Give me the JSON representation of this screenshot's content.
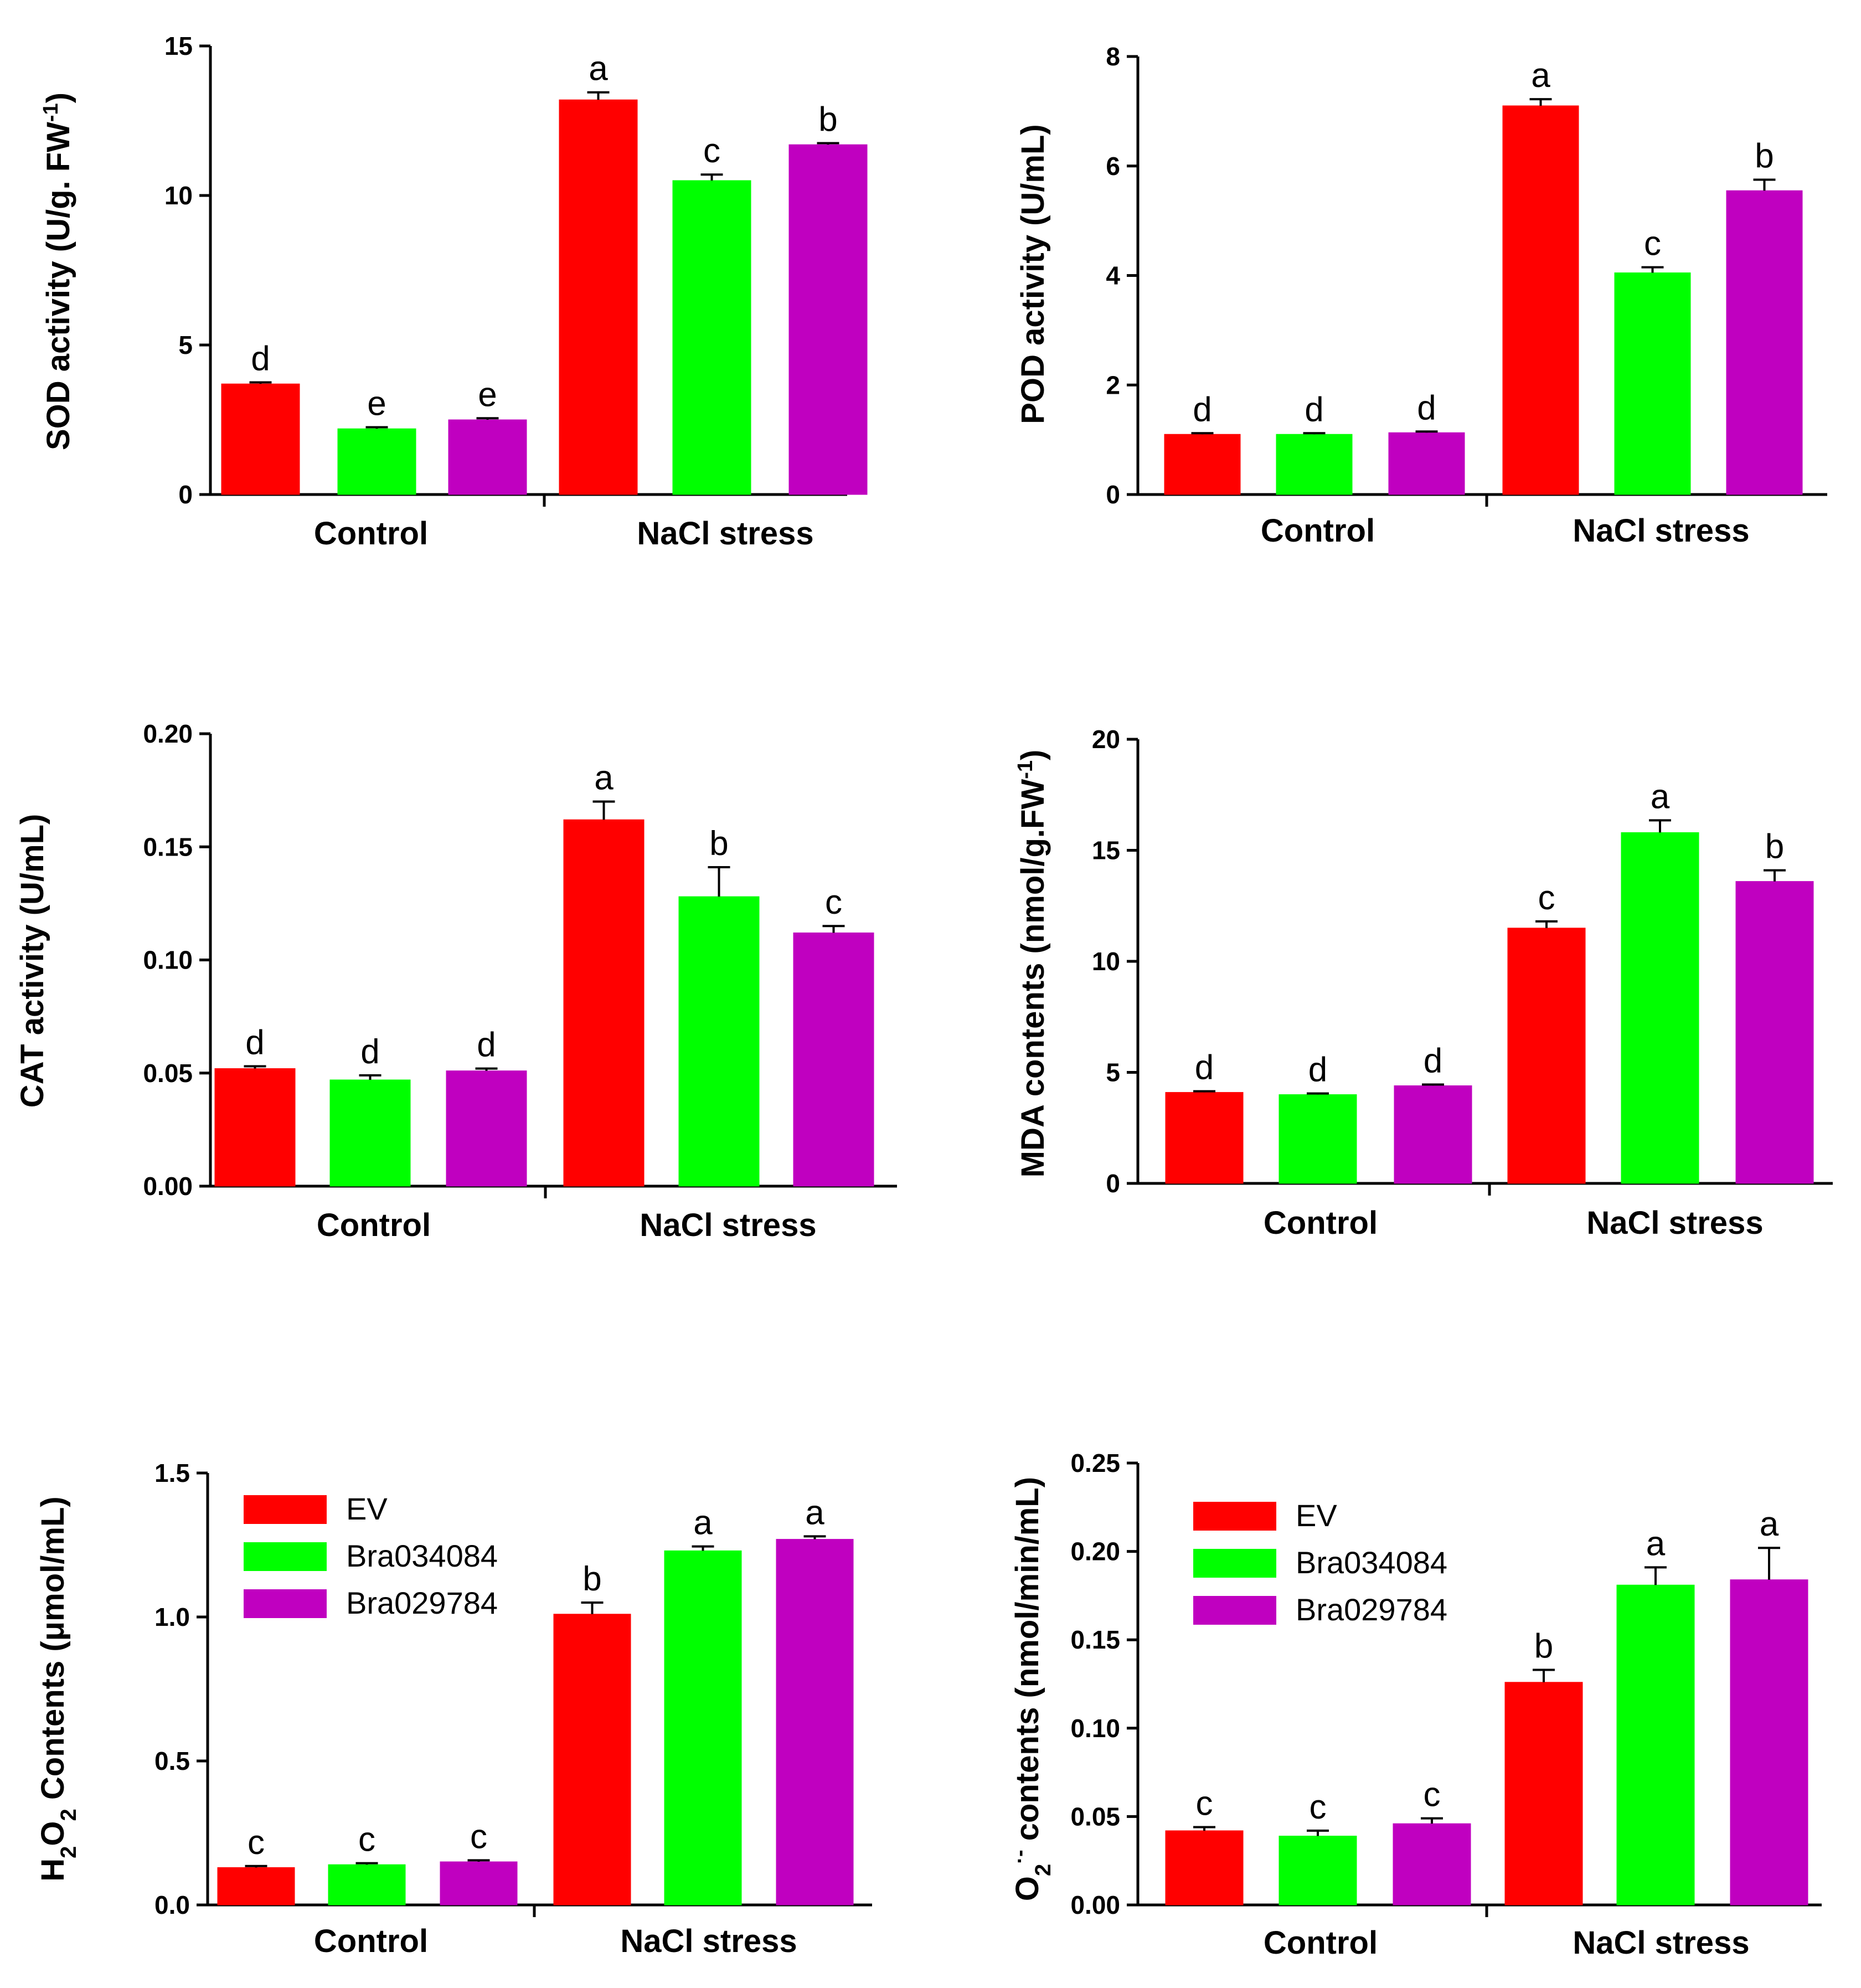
{
  "legend": {
    "EV": "EV",
    "Bra034084": "Bra034084",
    "Bra029784": "Bra029784"
  },
  "colors": {
    "EV": "#ff0000",
    "Bra034084": "#00ff00",
    "Bra029784": "#c000c0"
  },
  "chart_data": [
    {
      "type": "bar",
      "title": "",
      "ylabel": "SOD activity (U/g. FW",
      "ylabel_sup": "-1",
      "ylabel_tail": ")",
      "ylim": [
        0,
        15
      ],
      "yticks": [
        "0",
        "5",
        "10",
        "15"
      ],
      "categories": [
        "Control",
        "NaCl stress"
      ],
      "series": [
        {
          "name": "EV",
          "values": [
            3.7,
            13.2
          ],
          "errors": [
            0.05,
            0.25
          ],
          "labels": [
            "d",
            "a"
          ]
        },
        {
          "name": "Bra034084",
          "values": [
            2.2,
            10.5
          ],
          "errors": [
            0.05,
            0.2
          ],
          "labels": [
            "e",
            "c"
          ]
        },
        {
          "name": "Bra029784",
          "values": [
            2.5,
            11.7
          ],
          "errors": [
            0.05,
            0.05
          ],
          "labels": [
            "e",
            "b"
          ]
        }
      ],
      "legend": false
    },
    {
      "type": "bar",
      "title": "",
      "ylabel": "POD activity (U/mL)",
      "ylim": [
        0,
        8
      ],
      "yticks": [
        "0",
        "2",
        "4",
        "6",
        "8"
      ],
      "categories": [
        "Control",
        "NaCl stress"
      ],
      "series": [
        {
          "name": "EV",
          "values": [
            1.1,
            7.1
          ],
          "errors": [
            0.02,
            0.12
          ],
          "labels": [
            "d",
            "a"
          ]
        },
        {
          "name": "Bra034084",
          "values": [
            1.1,
            4.05
          ],
          "errors": [
            0.02,
            0.1
          ],
          "labels": [
            "d",
            "c"
          ]
        },
        {
          "name": "Bra029784",
          "values": [
            1.13,
            5.55
          ],
          "errors": [
            0.02,
            0.2
          ],
          "labels": [
            "d",
            "b"
          ]
        }
      ],
      "legend": false
    },
    {
      "type": "bar",
      "title": "",
      "ylabel": "CAT activity (U/mL)",
      "ylim": [
        0,
        0.2
      ],
      "yticks": [
        "0.00",
        "0.05",
        "0.10",
        "0.15",
        "0.20"
      ],
      "categories": [
        "Control",
        "NaCl stress"
      ],
      "series": [
        {
          "name": "EV",
          "values": [
            0.052,
            0.162
          ],
          "errors": [
            0.001,
            0.008
          ],
          "labels": [
            "d",
            "a"
          ]
        },
        {
          "name": "Bra034084",
          "values": [
            0.047,
            0.128
          ],
          "errors": [
            0.002,
            0.013
          ],
          "labels": [
            "d",
            "b"
          ]
        },
        {
          "name": "Bra029784",
          "values": [
            0.051,
            0.112
          ],
          "errors": [
            0.001,
            0.003
          ],
          "labels": [
            "d",
            "c"
          ]
        }
      ],
      "legend": false
    },
    {
      "type": "bar",
      "title": "",
      "ylabel": "MDA contents (nmol/g.FW",
      "ylabel_sup": "-1",
      "ylabel_tail": ")",
      "ylim": [
        0,
        20
      ],
      "yticks": [
        "0",
        "5",
        "10",
        "15",
        "20"
      ],
      "categories": [
        "Control",
        "NaCl stress"
      ],
      "series": [
        {
          "name": "EV",
          "values": [
            4.1,
            11.5
          ],
          "errors": [
            0.05,
            0.3
          ],
          "labels": [
            "d",
            "c"
          ]
        },
        {
          "name": "Bra034084",
          "values": [
            4.0,
            15.8
          ],
          "errors": [
            0.05,
            0.55
          ],
          "labels": [
            "d",
            "a"
          ]
        },
        {
          "name": "Bra029784",
          "values": [
            4.4,
            13.6
          ],
          "errors": [
            0.05,
            0.5
          ],
          "labels": [
            "d",
            "b"
          ]
        }
      ],
      "legend": false
    },
    {
      "type": "bar",
      "title": "",
      "ylabel": "H",
      "ylabel_sub1": "2",
      "ylabel_mid": "O",
      "ylabel_sub2": "2",
      "ylabel_tail": " Contents (μmol/mL)",
      "ylim": [
        0,
        1.5
      ],
      "yticks": [
        "0.0",
        "0.5",
        "1.0",
        "1.5"
      ],
      "categories": [
        "Control",
        "NaCl stress"
      ],
      "series": [
        {
          "name": "EV",
          "values": [
            0.13,
            1.01
          ],
          "errors": [
            0.005,
            0.04
          ],
          "labels": [
            "c",
            "b"
          ]
        },
        {
          "name": "Bra034084",
          "values": [
            0.14,
            1.23
          ],
          "errors": [
            0.005,
            0.015
          ],
          "labels": [
            "c",
            "a"
          ]
        },
        {
          "name": "Bra029784",
          "values": [
            0.15,
            1.27
          ],
          "errors": [
            0.005,
            0.01
          ],
          "labels": [
            "c",
            "a"
          ]
        }
      ],
      "legend": true
    },
    {
      "type": "bar",
      "title": "",
      "ylabel": "O",
      "ylabel_sub1": "2",
      "ylabel_sup": "·-",
      "ylabel_tail": " contents (nmol/min/mL)",
      "ylim": [
        0,
        0.25
      ],
      "yticks": [
        "0.00",
        "0.05",
        "0.10",
        "0.15",
        "0.20",
        "0.25"
      ],
      "categories": [
        "Control",
        "NaCl stress"
      ],
      "series": [
        {
          "name": "EV",
          "values": [
            0.042,
            0.126
          ],
          "errors": [
            0.002,
            0.007
          ],
          "labels": [
            "c",
            "b"
          ]
        },
        {
          "name": "Bra034084",
          "values": [
            0.039,
            0.181
          ],
          "errors": [
            0.003,
            0.01
          ],
          "labels": [
            "c",
            "a"
          ]
        },
        {
          "name": "Bra029784",
          "values": [
            0.046,
            0.184
          ],
          "errors": [
            0.003,
            0.018
          ],
          "labels": [
            "c",
            "a"
          ]
        }
      ],
      "legend": true
    }
  ]
}
